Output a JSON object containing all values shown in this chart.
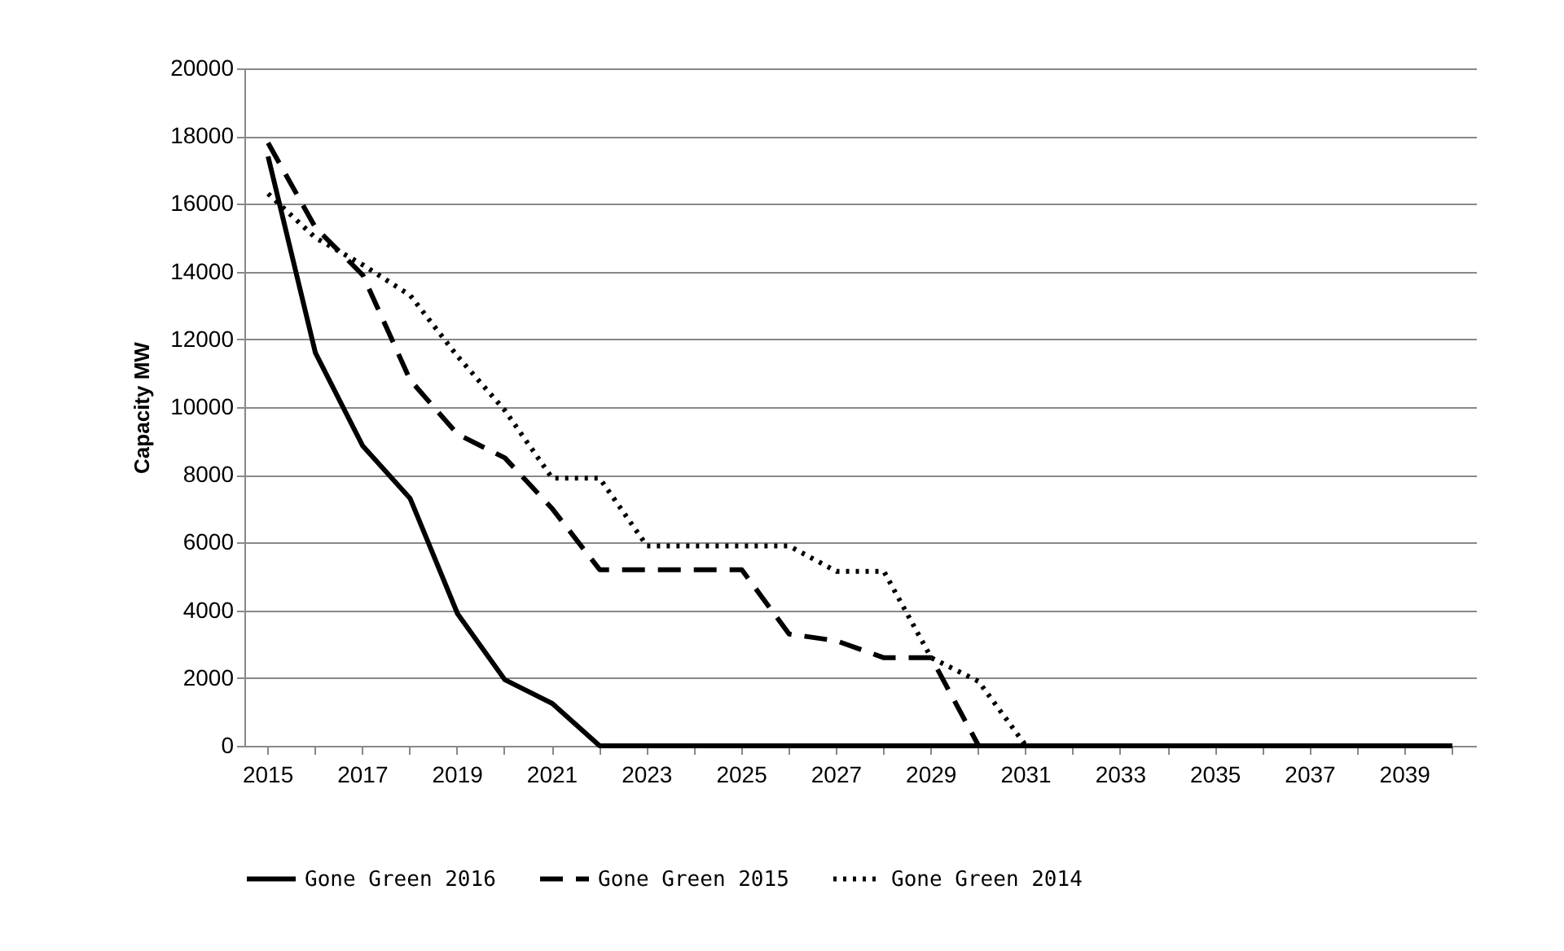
{
  "chart_data": {
    "type": "line",
    "ylabel": "Capacity  MW",
    "categories": [
      "2015",
      null,
      "2017",
      null,
      "2019",
      null,
      "2021",
      null,
      "2023",
      null,
      "2025",
      null,
      "2027",
      null,
      "2029",
      null,
      "2031",
      null,
      "2033",
      null,
      "2035",
      null,
      "2037",
      null,
      "2039",
      null
    ],
    "series": [
      {
        "name": "Gone Green 2016",
        "color": "#000000",
        "line_style": "solid",
        "values": [
          17400,
          11600,
          8850,
          7300,
          3900,
          1950,
          1250,
          0,
          0,
          0,
          0,
          0,
          0,
          0,
          0,
          0,
          0,
          0,
          0,
          0,
          0,
          0,
          0,
          0,
          0,
          0
        ]
      },
      {
        "name": "Gone Green 2015",
        "color": "#000000",
        "line_style": "dashed",
        "values": [
          17800,
          15300,
          13900,
          10800,
          9200,
          8500,
          7000,
          5200,
          5200,
          5200,
          5200,
          3300,
          3100,
          2600,
          2600,
          0,
          0,
          0,
          0,
          0,
          0,
          0,
          0,
          0,
          0,
          0
        ]
      },
      {
        "name": "Gone Green 2014",
        "color": "#000000",
        "line_style": "dotted",
        "values": [
          16300,
          15000,
          14200,
          13300,
          11500,
          9900,
          7900,
          7900,
          5900,
          5900,
          5900,
          5900,
          5150,
          5150,
          2600,
          1900,
          0,
          0,
          0,
          0,
          0,
          0,
          0,
          0,
          0,
          0
        ]
      }
    ],
    "ylim": [
      0,
      20000
    ],
    "yticks": [
      0,
      2000,
      4000,
      6000,
      8000,
      10000,
      12000,
      14000,
      16000,
      18000,
      20000
    ],
    "grid": "y",
    "legend": "bottom"
  }
}
